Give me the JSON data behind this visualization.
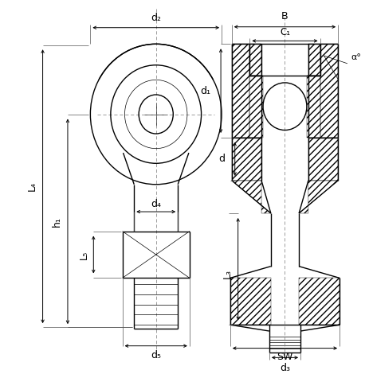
{
  "bg_color": "#ffffff",
  "line_color": "#000000",
  "lw": 1.0,
  "tlw": 0.5,
  "labels": {
    "d2": "d₂",
    "d1": "d₁",
    "d": "d",
    "d3": "d₃",
    "d4": "d₄",
    "d5": "d₅",
    "L4": "L₄",
    "h1": "h₁",
    "L5": "L₅",
    "L3": "L₃",
    "B": "B",
    "C1": "C₁",
    "SW": "SW",
    "alpha": "α°"
  }
}
